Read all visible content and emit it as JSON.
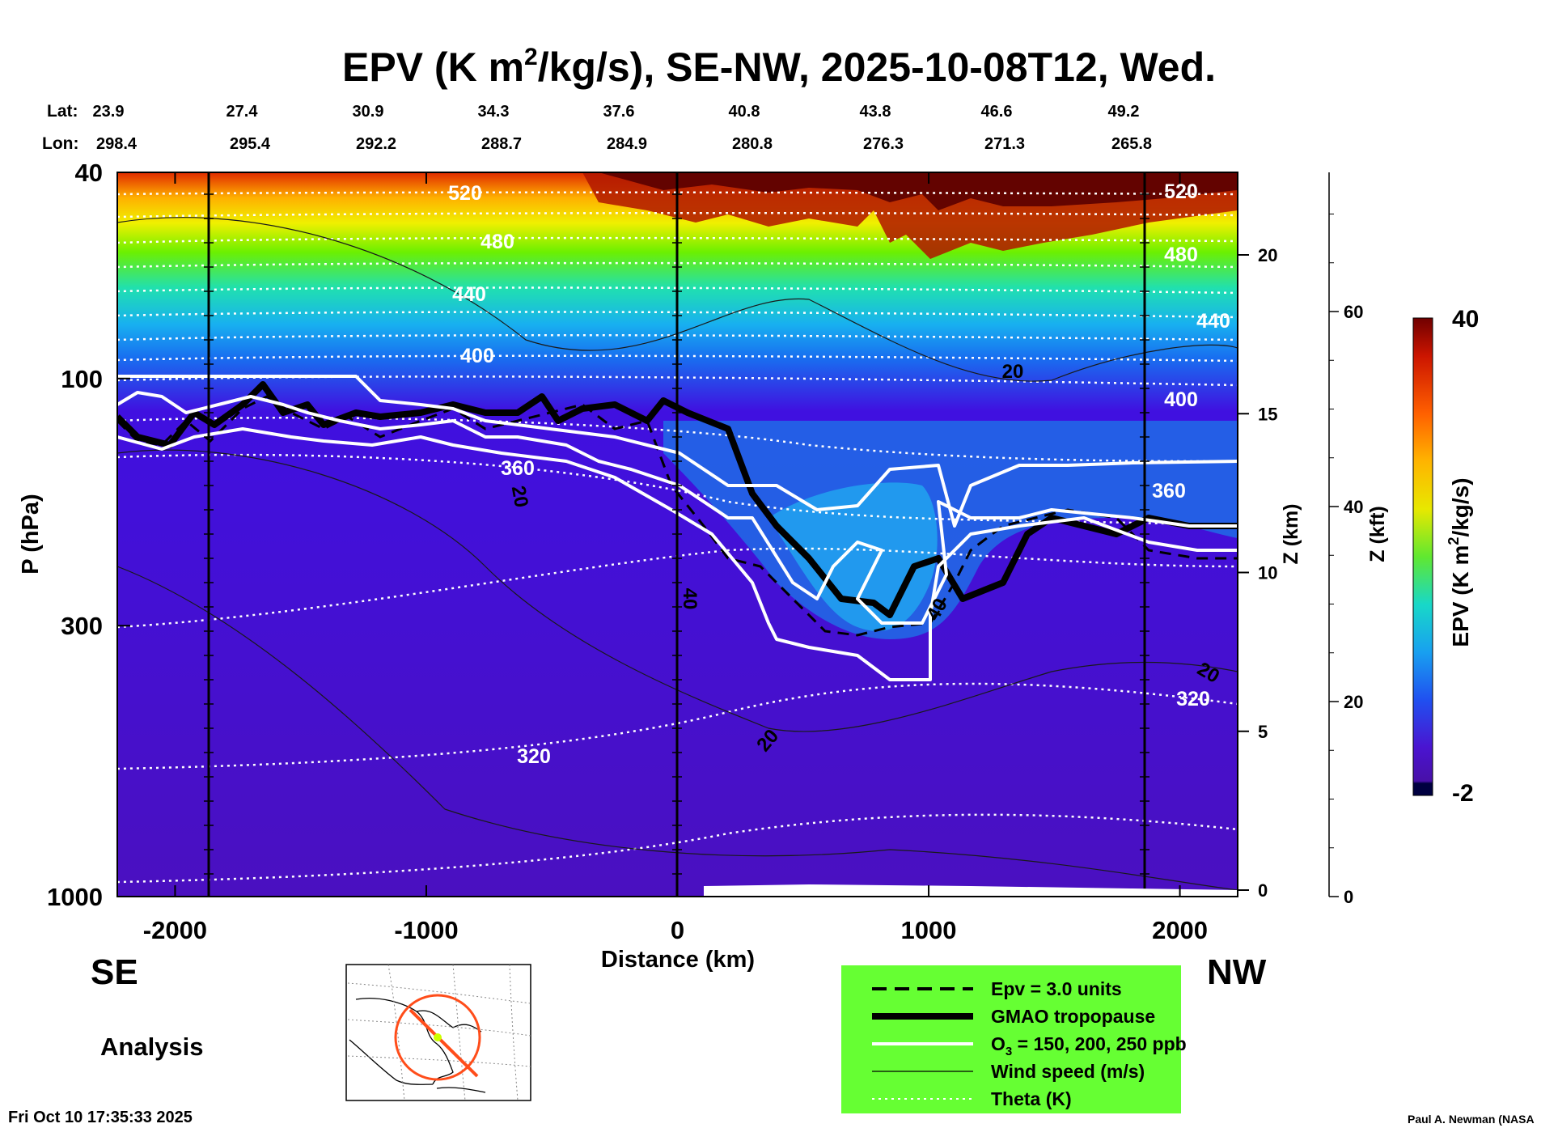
{
  "chart_data": {
    "type": "heatmap",
    "title_main": "EPV (K m",
    "title_sup": "2",
    "title_rest": "/kg/s), SE-NW, 2025-10-08T12, Wed.",
    "lat_label": "Lat:",
    "lon_label": "Lon:",
    "lat": [
      "23.9",
      "27.4",
      "30.9",
      "34.3",
      "37.6",
      "40.8",
      "43.8",
      "46.6",
      "49.2"
    ],
    "lon": [
      "298.4",
      "295.4",
      "292.2",
      "288.7",
      "284.9",
      "280.8",
      "276.3",
      "271.3",
      "265.8"
    ],
    "xlabel": "Distance (km)",
    "ylabel": "P (hPa)",
    "x_ticks": [
      -2000,
      -1000,
      0,
      1000,
      2000
    ],
    "xlim": [
      -2230,
      2230
    ],
    "y_ticks": [
      40,
      100,
      300,
      1000
    ],
    "ylim": [
      1000,
      40
    ],
    "z_km_label": "Z (km)",
    "z_km_ticks": [
      0,
      5,
      10,
      15,
      20
    ],
    "z_kft_label": "Z (kft)",
    "z_kft_ticks": [
      0,
      20,
      40,
      60
    ],
    "colorbar_label": "EPV (K m",
    "colorbar_sup": "2",
    "colorbar_rest": "/kg/s)",
    "colorbar_range": [
      -2,
      40
    ],
    "colorbar_ticks": [
      "40",
      "-2"
    ],
    "left_end": "SE",
    "right_end": "NW",
    "analysis_label": "Analysis",
    "timestamp": "Fri Oct 10 17:35:33 2025",
    "credit": "Paul A. Newman (NASA",
    "theta_contours": [
      {
        "label": "520",
        "theta_K": 520
      },
      {
        "label": "480",
        "theta_K": 480
      },
      {
        "label": "440",
        "theta_K": 440
      },
      {
        "label": "400",
        "theta_K": 400
      },
      {
        "label": "360",
        "theta_K": 360
      },
      {
        "label": "320",
        "theta_K": 320
      }
    ],
    "wind_labels": [
      "20",
      "20",
      "40",
      "40",
      "20",
      "20"
    ],
    "legend": [
      {
        "style": "dashed",
        "text": "Epv = 3.0 units"
      },
      {
        "style": "thick",
        "text": "GMAO tropopause"
      },
      {
        "style": "white",
        "text": "O",
        "sub": "3",
        "rest": " = 150, 200, 250 ppb"
      },
      {
        "style": "thin",
        "text": "Wind speed (m/s)"
      },
      {
        "style": "dotted",
        "text": "Theta (K)"
      }
    ],
    "colors": {
      "legend_bg": "#66ff33",
      "locator_line": "#ff4d1a",
      "locator_point": "#ccff00"
    }
  }
}
